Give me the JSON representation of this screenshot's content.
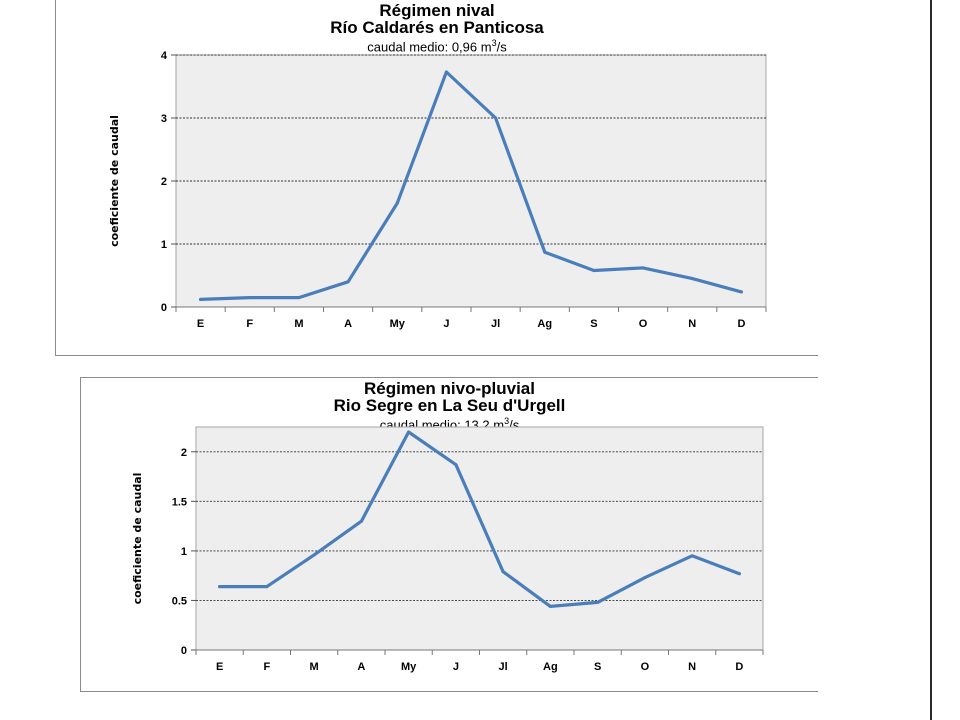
{
  "chart_data": [
    {
      "type": "line",
      "title": "Régimen nival",
      "subtitle": "Río Caldarés en Panticosa",
      "note_prefix": "caudal medio: 0,96 m",
      "note_sup": "3",
      "note_suffix": "/s",
      "ylabel": "coeficiente de caudal",
      "xlabel": "",
      "categories": [
        "E",
        "F",
        "M",
        "A",
        "My",
        "J",
        "Jl",
        "Ag",
        "S",
        "O",
        "N",
        "D"
      ],
      "values": [
        0.12,
        0.15,
        0.15,
        0.4,
        1.65,
        3.73,
        3.0,
        0.87,
        0.58,
        0.62,
        0.45,
        0.24
      ],
      "ylim": [
        0,
        4
      ],
      "yticks": [
        0,
        1,
        2,
        3,
        4
      ],
      "ytick_labels": [
        "0",
        "1",
        "2",
        "3",
        "4"
      ],
      "grid": true,
      "line_color": "#4a7ebb",
      "plot_background": "#eeeeee",
      "legend": "none"
    },
    {
      "type": "line",
      "title": "Régimen nivo-pluvial",
      "subtitle": "Rio Segre en La Seu d'Urgell",
      "note_prefix": "caudal medio: 13,2 m",
      "note_sup": "3",
      "note_suffix": "/s",
      "ylabel": "coeficiente de caudal",
      "xlabel": "",
      "categories": [
        "E",
        "F",
        "M",
        "A",
        "My",
        "J",
        "Jl",
        "Ag",
        "S",
        "O",
        "N",
        "D"
      ],
      "values": [
        0.64,
        0.64,
        0.96,
        1.3,
        2.2,
        1.87,
        0.79,
        0.44,
        0.48,
        0.73,
        0.95,
        0.77
      ],
      "ylim": [
        0,
        2.25
      ],
      "yticks": [
        0,
        0.5,
        1,
        1.5,
        2
      ],
      "ytick_labels": [
        "0",
        "0.5",
        "1",
        "1.5",
        "2"
      ],
      "grid": true,
      "line_color": "#4a7ebb",
      "plot_background": "#eeeeee",
      "legend": "none"
    }
  ]
}
